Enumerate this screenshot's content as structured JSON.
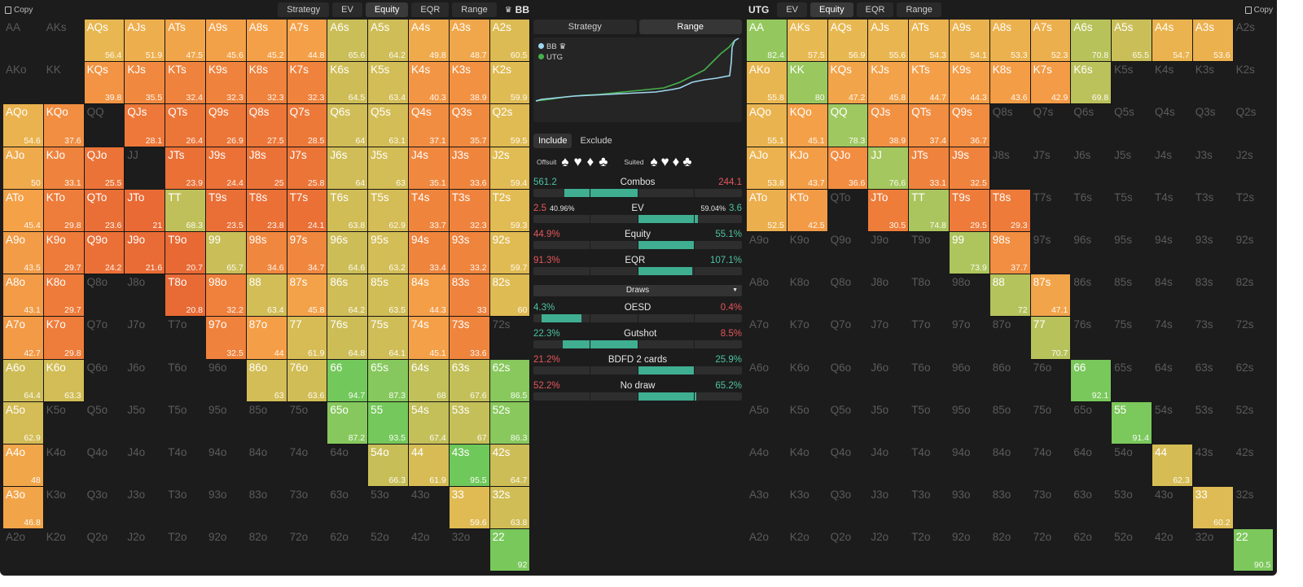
{
  "left_panel": {
    "copy_label": "Copy",
    "tabs": [
      "Strategy",
      "EV",
      "Equity",
      "EQR",
      "Range"
    ],
    "active_tab": "Equity",
    "player": "BB",
    "crown_icon": "crown-icon"
  },
  "right_panel": {
    "copy_label": "Copy",
    "tabs": [
      "EV",
      "Equity",
      "EQR",
      "Range"
    ],
    "active_tab": "Equity",
    "player": "UTG"
  },
  "hands": [
    [
      "AA",
      "AKs",
      "AQs",
      "AJs",
      "ATs",
      "A9s",
      "A8s",
      "A7s",
      "A6s",
      "A5s",
      "A4s",
      "A3s",
      "A2s"
    ],
    [
      "AKo",
      "KK",
      "KQs",
      "KJs",
      "KTs",
      "K9s",
      "K8s",
      "K7s",
      "K6s",
      "K5s",
      "K4s",
      "K3s",
      "K2s"
    ],
    [
      "AQo",
      "KQo",
      "QQ",
      "QJs",
      "QTs",
      "Q9s",
      "Q8s",
      "Q7s",
      "Q6s",
      "Q5s",
      "Q4s",
      "Q3s",
      "Q2s"
    ],
    [
      "AJo",
      "KJo",
      "QJo",
      "JJ",
      "JTs",
      "J9s",
      "J8s",
      "J7s",
      "J6s",
      "J5s",
      "J4s",
      "J3s",
      "J2s"
    ],
    [
      "ATo",
      "KTo",
      "QTo",
      "JTo",
      "TT",
      "T9s",
      "T8s",
      "T7s",
      "T6s",
      "T5s",
      "T4s",
      "T3s",
      "T2s"
    ],
    [
      "A9o",
      "K9o",
      "Q9o",
      "J9o",
      "T9o",
      "99",
      "98s",
      "97s",
      "96s",
      "95s",
      "94s",
      "93s",
      "92s"
    ],
    [
      "A8o",
      "K8o",
      "Q8o",
      "J8o",
      "T8o",
      "98o",
      "88",
      "87s",
      "86s",
      "85s",
      "84s",
      "83s",
      "82s"
    ],
    [
      "A7o",
      "K7o",
      "Q7o",
      "J7o",
      "T7o",
      "97o",
      "87o",
      "77",
      "76s",
      "75s",
      "74s",
      "73s",
      "72s"
    ],
    [
      "A6o",
      "K6o",
      "Q6o",
      "J6o",
      "T6o",
      "96o",
      "86o",
      "76o",
      "66",
      "65s",
      "64s",
      "63s",
      "62s"
    ],
    [
      "A5o",
      "K5o",
      "Q5o",
      "J5o",
      "T5o",
      "95o",
      "85o",
      "75o",
      "65o",
      "55",
      "54s",
      "53s",
      "52s"
    ],
    [
      "A4o",
      "K4o",
      "Q4o",
      "J4o",
      "T4o",
      "94o",
      "84o",
      "74o",
      "64o",
      "54o",
      "44",
      "43s",
      "42s"
    ],
    [
      "A3o",
      "K3o",
      "Q3o",
      "J3o",
      "T3o",
      "93o",
      "83o",
      "73o",
      "63o",
      "53o",
      "43o",
      "33",
      "32s"
    ],
    [
      "A2o",
      "K2o",
      "Q2o",
      "J2o",
      "T2o",
      "92o",
      "82o",
      "72o",
      "62o",
      "52o",
      "42o",
      "32o",
      "22"
    ]
  ],
  "bb_equity": [
    [
      null,
      null,
      56.4,
      51.9,
      47.5,
      45.6,
      45.2,
      44.8,
      65.6,
      64.2,
      49.8,
      48.7,
      60.5
    ],
    [
      null,
      null,
      39.8,
      35.5,
      32.4,
      32.3,
      32.3,
      32.3,
      64.5,
      63.4,
      40.3,
      38.9,
      59.9
    ],
    [
      54.6,
      37.6,
      null,
      28.1,
      26.4,
      26.9,
      27.5,
      28.5,
      64,
      63.1,
      37.1,
      35.7,
      59.5
    ],
    [
      50,
      33.1,
      25.5,
      null,
      23.9,
      24.4,
      25,
      25.8,
      64,
      63,
      35.1,
      33.6,
      59.4
    ],
    [
      45.4,
      29.8,
      23.6,
      21,
      68.3,
      23.5,
      23.8,
      24.1,
      63.8,
      62.9,
      33.7,
      32.3,
      59.3
    ],
    [
      43.5,
      29.7,
      24.2,
      21.6,
      20.7,
      65.7,
      34.6,
      34.7,
      64.6,
      63.2,
      33.4,
      33.2,
      59.7
    ],
    [
      43.1,
      29.7,
      null,
      null,
      20.8,
      32.2,
      63.4,
      45.8,
      64.2,
      63.5,
      44.3,
      33,
      60
    ],
    [
      42.7,
      29.8,
      null,
      null,
      null,
      32.5,
      44,
      61.9,
      64.8,
      64.1,
      45.1,
      33.6,
      null
    ],
    [
      64.4,
      63.3,
      null,
      null,
      null,
      null,
      63,
      63.6,
      94.7,
      87.3,
      68,
      67.6,
      86.5
    ],
    [
      62.9,
      null,
      null,
      null,
      null,
      null,
      null,
      null,
      87.2,
      93.5,
      67.4,
      67,
      86.3
    ],
    [
      48,
      null,
      null,
      null,
      null,
      null,
      null,
      null,
      null,
      66.3,
      61.9,
      95.5,
      64.7
    ],
    [
      46.8,
      null,
      null,
      null,
      null,
      null,
      null,
      null,
      null,
      null,
      null,
      59.6,
      63.8
    ],
    [
      null,
      null,
      null,
      null,
      null,
      null,
      null,
      null,
      null,
      null,
      null,
      null,
      92
    ]
  ],
  "utg_equity": [
    [
      82.4,
      57.5,
      56.9,
      55.6,
      54.3,
      54.1,
      53.3,
      52.3,
      70.8,
      65.5,
      54.7,
      53.6,
      null
    ],
    [
      55.8,
      80,
      47.2,
      45.8,
      44.7,
      44.3,
      43.6,
      42.9,
      69.8,
      null,
      null,
      null,
      null
    ],
    [
      55.1,
      45.1,
      78.3,
      38.9,
      37.4,
      36.7,
      null,
      null,
      null,
      null,
      null,
      null,
      null
    ],
    [
      53.8,
      43.7,
      36.6,
      76.6,
      33.1,
      32.5,
      null,
      null,
      null,
      null,
      null,
      null,
      null
    ],
    [
      52.5,
      42.5,
      null,
      30.5,
      74.8,
      29.5,
      29.3,
      null,
      null,
      null,
      null,
      null,
      null
    ],
    [
      null,
      null,
      null,
      null,
      null,
      73.9,
      37.7,
      null,
      null,
      null,
      null,
      null,
      null
    ],
    [
      null,
      null,
      null,
      null,
      null,
      null,
      72,
      47.1,
      null,
      null,
      null,
      null,
      null
    ],
    [
      null,
      null,
      null,
      null,
      null,
      null,
      null,
      70.7,
      null,
      null,
      null,
      null,
      null
    ],
    [
      null,
      null,
      null,
      null,
      null,
      null,
      null,
      null,
      92.1,
      null,
      null,
      null,
      null
    ],
    [
      null,
      null,
      null,
      null,
      null,
      null,
      null,
      null,
      null,
      91.4,
      null,
      null,
      null
    ],
    [
      null,
      null,
      null,
      null,
      null,
      null,
      null,
      null,
      null,
      null,
      62.3,
      null,
      null
    ],
    [
      null,
      null,
      null,
      null,
      null,
      null,
      null,
      null,
      null,
      null,
      null,
      60.2,
      null
    ],
    [
      null,
      null,
      null,
      null,
      null,
      null,
      null,
      null,
      null,
      null,
      null,
      null,
      90.5
    ]
  ],
  "middle": {
    "view_tabs": [
      "Strategy",
      "Range"
    ],
    "active_view": "Range",
    "legend": [
      {
        "name": "BB",
        "color": "#9fd6f0"
      },
      {
        "name": "UTG",
        "color": "#46b04a"
      }
    ],
    "filter_tabs": [
      "Include",
      "Exclude"
    ],
    "active_filter": "Include",
    "offsuit_label": "Offsuit",
    "suited_label": "Suited",
    "suits": [
      "spade-icon",
      "heart-icon",
      "diamond-icon",
      "club-icon"
    ],
    "suit_glyphs": [
      "♠",
      "♥",
      "♦",
      "♣"
    ],
    "stats": [
      {
        "label": "Combos",
        "left": "561.2",
        "right": "244.1",
        "left_color": "teal",
        "right_color": "red"
      },
      {
        "label": "EV",
        "left": "2.5",
        "left_sub": "40.96%",
        "right": "3.6",
        "right_sub": "59.04%",
        "left_color": "red",
        "right_color": "teal"
      },
      {
        "label": "Equity",
        "left": "44.9%",
        "right": "55.1%",
        "left_color": "red",
        "right_color": "teal"
      },
      {
        "label": "EQR",
        "left": "91.3%",
        "right": "107.1%",
        "left_color": "red",
        "right_color": "teal"
      }
    ],
    "draws_label": "Draws",
    "draws": [
      {
        "label": "OESD",
        "left": "4.3%",
        "right": "0.4%",
        "left_color": "teal",
        "right_color": "red"
      },
      {
        "label": "Gutshot",
        "left": "22.3%",
        "right": "8.5%",
        "left_color": "teal",
        "right_color": "red"
      },
      {
        "label": "BDFD 2 cards",
        "left": "21.2%",
        "right": "25.9%",
        "left_color": "red",
        "right_color": "teal"
      },
      {
        "label": "No draw",
        "left": "52.2%",
        "right": "65.2%",
        "left_color": "red",
        "right_color": "teal"
      }
    ]
  },
  "colors": {
    "teal": "#4fc2a2",
    "red": "#e6565c",
    "bar_fill": "#3fae91",
    "bg": "#1c1c1c"
  }
}
